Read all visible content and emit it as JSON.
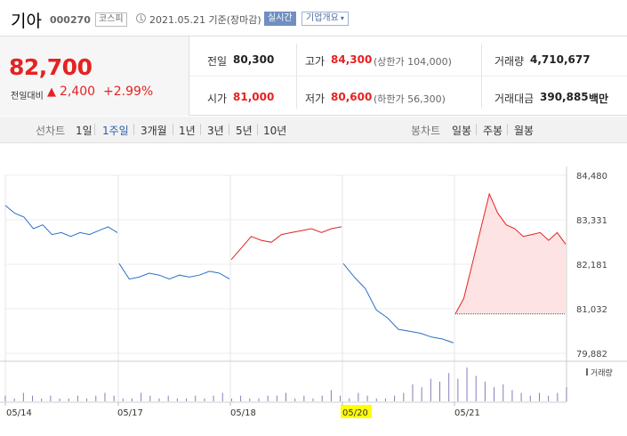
{
  "header": {
    "name": "기아",
    "code": "000270",
    "market": "코스피",
    "date": "2021.05.21 기준(장마감)",
    "live": "실시간",
    "company": "기업개요"
  },
  "quote": {
    "price": "82,700",
    "change_label": "전일대비",
    "change_value": "2,400",
    "change_pct": "+2.99%",
    "prev_label": "전일",
    "prev": "80,300",
    "open_label": "시가",
    "open": "81,000",
    "high_label": "고가",
    "high": "84,300",
    "upper_limit": "(상한가 104,000)",
    "low_label": "저가",
    "low": "80,600",
    "lower_limit": "(하한가 56,300)",
    "volume_label": "거래량",
    "volume": "4,710,677",
    "amount_label": "거래대금",
    "amount": "390,885",
    "amount_unit": "백만"
  },
  "tabs": {
    "line_label": "선차트",
    "line": [
      "1일",
      "1주일",
      "3개월",
      "1년",
      "3년",
      "5년",
      "10년"
    ],
    "selected_line": "1주일",
    "candle_label": "봉차트",
    "candle": [
      "일봉",
      "주봉",
      "월봉"
    ]
  },
  "colors": {
    "up": "#e52222",
    "down": "#2a6fc9",
    "fill": "#fde3e3",
    "volume": "#8a7ab8",
    "highlight": "#ffff00"
  },
  "chart_data": {
    "type": "line",
    "ylim": [
      79882,
      84480
    ],
    "yticks": [
      "84,480",
      "83,331",
      "82,181",
      "81,032",
      "79,882"
    ],
    "xticks": [
      "05/14",
      "05/17",
      "05/18",
      "05/20",
      "05/21"
    ],
    "highlighted_xtick": "05/20",
    "volume_label": "거래량",
    "days": [
      {
        "date": "05/14",
        "values": [
          83700,
          83500,
          83400,
          83100,
          83200,
          82950,
          83000,
          82900,
          83000,
          82950,
          83050,
          83150,
          83000
        ]
      },
      {
        "date": "05/17",
        "values": [
          82200,
          81800,
          81850,
          81950,
          81900,
          81800,
          81900,
          81850,
          81900,
          82000,
          81950,
          81800
        ]
      },
      {
        "date": "05/18",
        "values": [
          82300,
          82600,
          82900,
          82800,
          82750,
          82950,
          83000,
          83050,
          83100,
          83000,
          83100,
          83150
        ]
      },
      {
        "date": "05/20",
        "values": [
          82200,
          81850,
          81550,
          81000,
          80800,
          80500,
          80450,
          80400,
          80300,
          80250,
          80150
        ]
      },
      {
        "date": "05/21",
        "values": [
          80900,
          81300,
          82200,
          83100,
          84000,
          83500,
          83200,
          83100,
          82900,
          82950,
          83000,
          82800,
          83000,
          82700
        ]
      }
    ],
    "volume": [
      2,
      1,
      3,
      2,
      1,
      2,
      1,
      1,
      2,
      1,
      2,
      3,
      2,
      1,
      1,
      3,
      2,
      1,
      2,
      1,
      1,
      2,
      1,
      2,
      3,
      1,
      2,
      1,
      1,
      2,
      2,
      3,
      1,
      2,
      1,
      2,
      4,
      2,
      1,
      3,
      2,
      1,
      1,
      2,
      3,
      6,
      5,
      8,
      7,
      10,
      8,
      12,
      9,
      7,
      5,
      6,
      4,
      3,
      2,
      3,
      2,
      3,
      5
    ]
  }
}
